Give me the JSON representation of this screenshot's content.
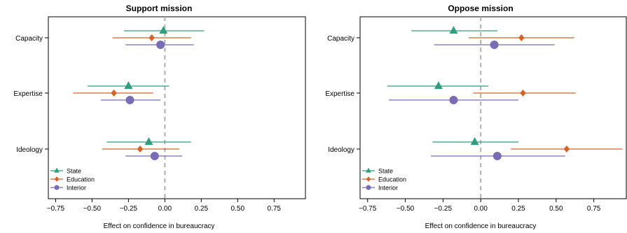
{
  "colors": {
    "State": "#2f9e7e",
    "Education": "#d4622a",
    "Interior": "#7a6bb5",
    "zero_line": "#b0b0b0",
    "frame": "#000000"
  },
  "chart_data": [
    {
      "type": "scatter",
      "title": "Support mission",
      "xlabel": "Effect on confidence in bureaucracy",
      "ylabel": "",
      "xlim": [
        -0.8,
        0.97
      ],
      "xticks": [
        "−0.75",
        "−0.50",
        "−0.25",
        "0.00",
        "0.25",
        "0.50",
        "0.75"
      ],
      "xtick_values": [
        -0.75,
        -0.5,
        -0.25,
        0,
        0.25,
        0.5,
        0.75
      ],
      "categories": [
        "Capacity",
        "Expertise",
        "Ideology"
      ],
      "reference_line": 0,
      "legend_position": "bottom-left",
      "series": [
        {
          "name": "State",
          "marker": "triangle-up-icon",
          "points": [
            {
              "category": "Capacity",
              "estimate": -0.01,
              "low": -0.28,
              "high": 0.27
            },
            {
              "category": "Expertise",
              "estimate": -0.25,
              "low": -0.53,
              "high": 0.03
            },
            {
              "category": "Ideology",
              "estimate": -0.11,
              "low": -0.4,
              "high": 0.18
            }
          ]
        },
        {
          "name": "Education",
          "marker": "diamond-icon",
          "points": [
            {
              "category": "Capacity",
              "estimate": -0.09,
              "low": -0.36,
              "high": 0.18
            },
            {
              "category": "Expertise",
              "estimate": -0.35,
              "low": -0.63,
              "high": -0.08
            },
            {
              "category": "Ideology",
              "estimate": -0.17,
              "low": -0.43,
              "high": 0.1
            }
          ]
        },
        {
          "name": "Interior",
          "marker": "circle-icon",
          "points": [
            {
              "category": "Capacity",
              "estimate": -0.03,
              "low": -0.27,
              "high": 0.2
            },
            {
              "category": "Expertise",
              "estimate": -0.24,
              "low": -0.44,
              "high": -0.03
            },
            {
              "category": "Ideology",
              "estimate": -0.07,
              "low": -0.27,
              "high": 0.12
            }
          ]
        }
      ]
    },
    {
      "type": "scatter",
      "title": "Oppose mission",
      "xlabel": "Effect on confidence in bureaucracy",
      "ylabel": "",
      "xlim": [
        -0.8,
        0.97
      ],
      "xticks": [
        "−0.75",
        "−0.50",
        "−0.25",
        "0.00",
        "0.25",
        "0.50",
        "0.75"
      ],
      "xtick_values": [
        -0.75,
        -0.5,
        -0.25,
        0,
        0.25,
        0.5,
        0.75
      ],
      "categories": [
        "Capacity",
        "Expertise",
        "Ideology"
      ],
      "reference_line": 0,
      "legend_position": "bottom-left",
      "series": [
        {
          "name": "State",
          "marker": "triangle-up-icon",
          "points": [
            {
              "category": "Capacity",
              "estimate": -0.18,
              "low": -0.46,
              "high": 0.11
            },
            {
              "category": "Expertise",
              "estimate": -0.28,
              "low": -0.62,
              "high": 0.05
            },
            {
              "category": "Ideology",
              "estimate": -0.04,
              "low": -0.32,
              "high": 0.25
            }
          ]
        },
        {
          "name": "Education",
          "marker": "diamond-icon",
          "points": [
            {
              "category": "Capacity",
              "estimate": 0.27,
              "low": -0.08,
              "high": 0.62
            },
            {
              "category": "Expertise",
              "estimate": 0.28,
              "low": -0.05,
              "high": 0.63
            },
            {
              "category": "Ideology",
              "estimate": 0.57,
              "low": 0.2,
              "high": 0.94
            }
          ]
        },
        {
          "name": "Interior",
          "marker": "circle-icon",
          "points": [
            {
              "category": "Capacity",
              "estimate": 0.09,
              "low": -0.31,
              "high": 0.49
            },
            {
              "category": "Expertise",
              "estimate": -0.18,
              "low": -0.61,
              "high": 0.25
            },
            {
              "category": "Ideology",
              "estimate": 0.11,
              "low": -0.33,
              "high": 0.56
            }
          ]
        }
      ]
    }
  ]
}
